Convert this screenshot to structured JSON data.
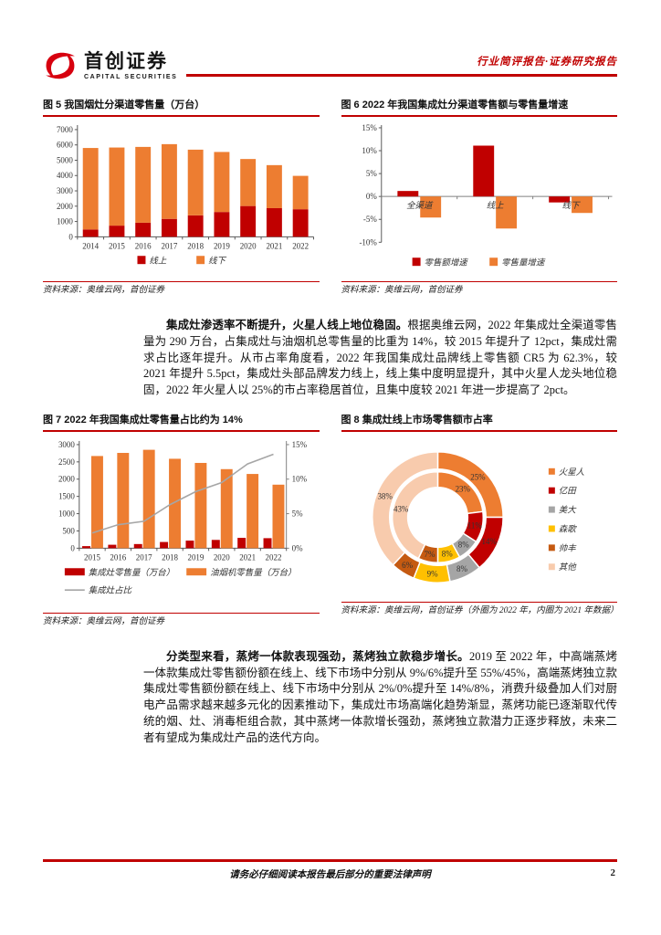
{
  "header": {
    "brand_cn": "首创证券",
    "brand_en": "CAPITAL SECURITIES",
    "report_type": "行业简评报告·证券研究报告"
  },
  "colors": {
    "accent_red": "#c00000",
    "orange": "#ED7D31",
    "gray": "#A5A5A5",
    "gold": "#FFC000",
    "brown": "#C55A11",
    "peach": "#F8CBAD",
    "logo_red": "#D7000F"
  },
  "paragraphs": [
    {
      "lead": "集成灶渗透率不断提升，火星人线上地位稳固。",
      "body": "根据奥维云网，2022 年集成灶全渠道零售量为 290 万台，占集成灶与油烟机总零售量的比重为 14%，较 2015 年提升了 12pct，集成灶需求占比逐年提升。从市占率角度看，2022 年我国集成灶品牌线上零售额 CR5 为 62.3%，较 2021 年提升 5.5pct，集成灶头部品牌发力线上，线上集中度明显提升，其中火星人龙头地位稳固，2022 年火星人以 25%的市占率稳居首位，且集中度较 2021 年进一步提高了 2pct。"
    },
    {
      "lead": "分类型来看，蒸烤一体款表现强劲，蒸烤独立款稳步增长。",
      "body": "2019 至 2022 年，中高端蒸烤一体款集成灶零售额份额在线上、线下市场中分别从 9%/6%提升至 55%/45%，高端蒸烤独立款集成灶零售额份额在线上、线下市场中分别从 2%/0%提升至 14%/8%，消费升级叠加人们对厨电产品需求越来越多元化的因素推动下，集成灶市场高端化趋势渐显，蒸烤功能已逐渐取代传统的烟、灶、消毒柜组合款，其中蒸烤一体款增长强劲，蒸烤独立款潜力正逐步释放，未来二者有望成为集成灶产品的迭代方向。"
    }
  ],
  "footer": {
    "disclaimer": "请务必仔细阅读本报告最后部分的重要法律声明",
    "page_number": "2"
  },
  "chart_data": [
    {
      "id": "fig5",
      "type": "bar",
      "stacked": true,
      "title": "图 5 我国烟灶分渠道零售量（万台）",
      "source": "资料来源：奥维云网，首创证券",
      "categories": [
        "2014",
        "2015",
        "2016",
        "2017",
        "2018",
        "2019",
        "2020",
        "2021",
        "2022"
      ],
      "series": [
        {
          "name": "线上",
          "color": "#C00000",
          "values": [
            480,
            730,
            920,
            1170,
            1400,
            1620,
            2010,
            1870,
            1800
          ]
        },
        {
          "name": "线下",
          "color": "#ED7D31",
          "values": [
            5320,
            5100,
            4950,
            4880,
            4290,
            3920,
            3070,
            2810,
            2180
          ]
        }
      ],
      "ylim": [
        0,
        7000
      ],
      "yticks": [
        0,
        1000,
        2000,
        3000,
        4000,
        5000,
        6000,
        7000
      ],
      "legend_position": "bottom"
    },
    {
      "id": "fig6",
      "type": "bar",
      "stacked": false,
      "title": "图 6 2022 年我国集成灶分渠道零售额与零售量增速",
      "source": "资料来源：奥维云网，首创证券",
      "categories": [
        "全渠道",
        "线上",
        "线下"
      ],
      "series": [
        {
          "name": "零售额增速",
          "color": "#C00000",
          "values": [
            1.2,
            11.1,
            -1.3
          ]
        },
        {
          "name": "零售量增速",
          "color": "#ED7D31",
          "values": [
            -4.6,
            -7.0,
            -3.6
          ]
        }
      ],
      "unit": "%",
      "ylim": [
        -10,
        15
      ],
      "yticks": [
        15,
        10,
        5,
        0,
        -5,
        -10
      ],
      "legend_position": "bottom"
    },
    {
      "id": "fig7",
      "type": "bar",
      "subtype": "bar+line dual axis",
      "title": "图 7 2022 年我国集成灶零售量占比约为 14%",
      "source": "资料来源：奥维云网，首创证券",
      "categories": [
        "2015",
        "2016",
        "2017",
        "2018",
        "2019",
        "2020",
        "2021",
        "2022"
      ],
      "series": [
        {
          "name": "集成灶零售量（万台）",
          "color": "#C00000",
          "axis": "left",
          "values": [
            60,
            100,
            120,
            180,
            220,
            240,
            300,
            290
          ]
        },
        {
          "name": "油烟机零售量（万台）",
          "color": "#ED7D31",
          "axis": "left",
          "values": [
            2670,
            2760,
            2850,
            2590,
            2470,
            2290,
            2150,
            1840
          ]
        },
        {
          "name": "集成灶占比",
          "color": "#A6A6A6",
          "axis": "right",
          "type": "line",
          "values": [
            2.2,
            3.4,
            3.9,
            6.3,
            8.2,
            9.5,
            12.2,
            13.6
          ]
        }
      ],
      "ylim_left": [
        0,
        3000
      ],
      "yticks_left": [
        0,
        500,
        1000,
        1500,
        2000,
        2500,
        3000
      ],
      "ylim_right": [
        0,
        15
      ],
      "yticks_right": [
        0,
        5,
        10,
        15
      ],
      "right_unit": "%",
      "legend_position": "bottom"
    },
    {
      "id": "fig8",
      "type": "pie",
      "subtype": "double donut",
      "title": "图 8 集成灶线上市场零售额市占率",
      "source": "资料来源：奥维云网，首创证券（外圈为 2022 年，内圈为 2021 年数据）",
      "legend": [
        "火星人",
        "亿田",
        "美大",
        "森歌",
        "帅丰",
        "其他"
      ],
      "colors": [
        "#ED7D31",
        "#C00000",
        "#A5A5A5",
        "#FFC000",
        "#C55A11",
        "#F8CBAD"
      ],
      "rings": [
        {
          "name": "2022（外圈）",
          "values": [
            25,
            14,
            8,
            9,
            6,
            38
          ]
        },
        {
          "name": "2021（内圈）",
          "values": [
            23,
            11,
            8,
            8,
            7,
            43
          ]
        }
      ],
      "unit": "%",
      "legend_position": "right"
    }
  ]
}
